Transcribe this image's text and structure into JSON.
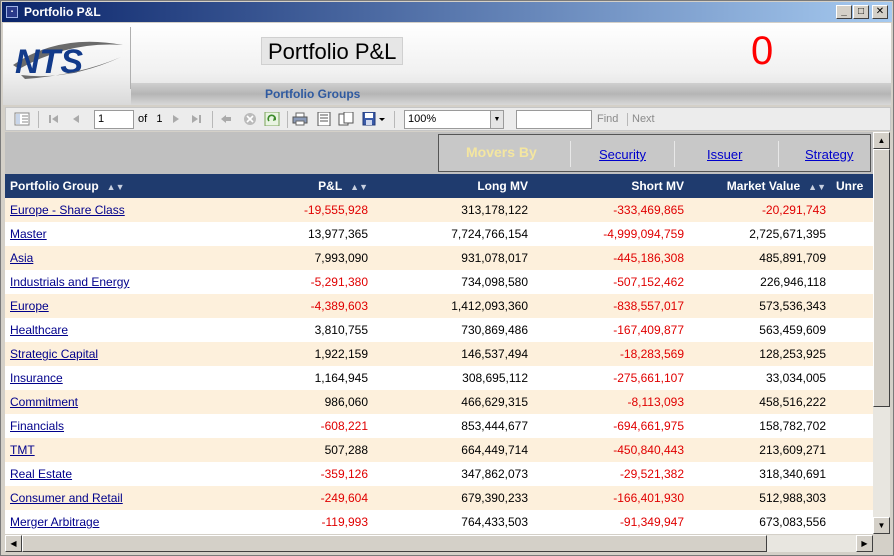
{
  "window": {
    "title": "Portfolio P&L",
    "minimize": "_",
    "maximize": "□",
    "close": "✕"
  },
  "header": {
    "page_title": "Portfolio P&L",
    "counter": "0",
    "groups_label": "Portfolio Groups",
    "logo_text": "NTS"
  },
  "toolbar": {
    "page_value": "1",
    "of_label": "of",
    "total_pages": "1",
    "zoom_value": "100%",
    "find_value": "",
    "find_label": "Find",
    "next_label": "Next"
  },
  "movers": {
    "title": "Movers By",
    "links": [
      "Security",
      "Issuer",
      "Strategy"
    ]
  },
  "columns": [
    "Portfolio Group",
    "P&L",
    "Long MV",
    "Short MV",
    "Market Value",
    "Unre"
  ],
  "rows": [
    {
      "name": "Europe - Share Class",
      "pnl": "-19,555,928",
      "long": "313,178,122",
      "short": "-333,469,865",
      "mv": "-20,291,743"
    },
    {
      "name": "Master",
      "pnl": "13,977,365",
      "long": "7,724,766,154",
      "short": "-4,999,094,759",
      "mv": "2,725,671,395"
    },
    {
      "name": "Asia",
      "pnl": "7,993,090",
      "long": "931,078,017",
      "short": "-445,186,308",
      "mv": "485,891,709"
    },
    {
      "name": "Industrials and Energy",
      "pnl": "-5,291,380",
      "long": "734,098,580",
      "short": "-507,152,462",
      "mv": "226,946,118"
    },
    {
      "name": "Europe",
      "pnl": "-4,389,603",
      "long": "1,412,093,360",
      "short": "-838,557,017",
      "mv": "573,536,343"
    },
    {
      "name": "Healthcare",
      "pnl": "3,810,755",
      "long": "730,869,486",
      "short": "-167,409,877",
      "mv": "563,459,609"
    },
    {
      "name": "Strategic Capital",
      "pnl": "1,922,159",
      "long": "146,537,494",
      "short": "-18,283,569",
      "mv": "128,253,925"
    },
    {
      "name": "Insurance",
      "pnl": "1,164,945",
      "long": "308,695,112",
      "short": "-275,661,107",
      "mv": "33,034,005"
    },
    {
      "name": "Commitment",
      "pnl": "986,060",
      "long": "466,629,315",
      "short": "-8,113,093",
      "mv": "458,516,222"
    },
    {
      "name": "Financials",
      "pnl": "-608,221",
      "long": "853,444,677",
      "short": "-694,661,975",
      "mv": "158,782,702"
    },
    {
      "name": "TMT",
      "pnl": "507,288",
      "long": "664,449,714",
      "short": "-450,840,443",
      "mv": "213,609,271"
    },
    {
      "name": "Real Estate",
      "pnl": "-359,126",
      "long": "347,862,073",
      "short": "-29,521,382",
      "mv": "318,340,691"
    },
    {
      "name": "Consumer and Retail",
      "pnl": "-249,604",
      "long": "679,390,233",
      "short": "-166,401,930",
      "mv": "512,988,303"
    },
    {
      "name": "Merger Arbitrage",
      "pnl": "-119,993",
      "long": "764,433,503",
      "short": "-91,349,947",
      "mv": "673,083,556"
    }
  ],
  "colors": {
    "header_bg": "#1f3b6e",
    "odd_row": "#fdf0dc",
    "negative": "#e00000",
    "link": "#00008b",
    "counter": "#ff0000"
  }
}
